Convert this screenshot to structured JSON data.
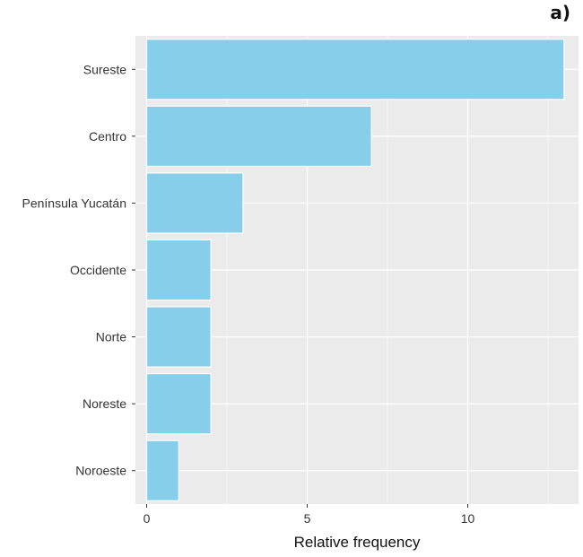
{
  "figure": {
    "panel_tag": "a)"
  },
  "chart_data": {
    "type": "bar",
    "orientation": "horizontal",
    "categories": [
      "Sureste",
      "Centro",
      "Península Yucatán",
      "Occidente",
      "Norte",
      "Noreste",
      "Noroeste"
    ],
    "values": [
      13,
      7,
      3,
      2,
      2,
      2,
      1
    ],
    "xlabel": "Relative frequency",
    "ylabel": "",
    "xlim": [
      -0.35,
      13.45
    ],
    "x_ticks": [
      0,
      5,
      10
    ],
    "x_tick_labels": [
      "0",
      "5",
      "10"
    ],
    "grid": true,
    "colors": {
      "bar_fill": "#87ceeb",
      "bar_stroke": "#ffffff",
      "panel_bg": "#ebebeb",
      "grid": "#ffffff",
      "tick_text": "#333333"
    }
  }
}
